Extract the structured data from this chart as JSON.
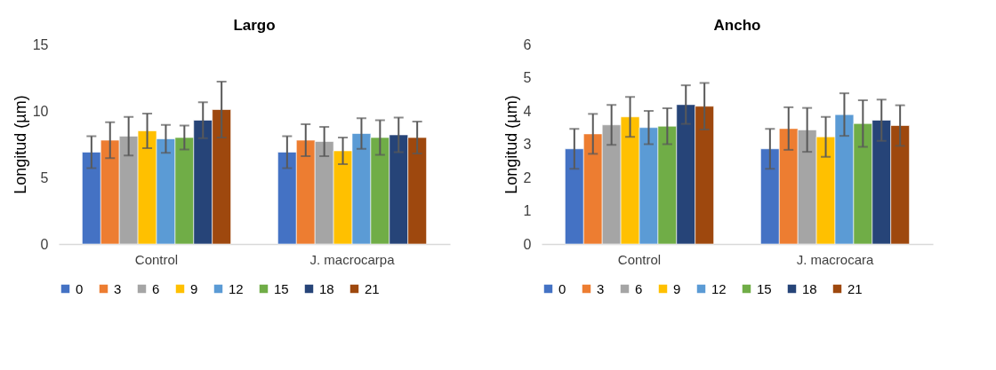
{
  "chart_data": [
    {
      "type": "bar",
      "title": "Largo",
      "ylabel": "Longitud (µm)",
      "categories": [
        "Control",
        "J. macrocarpa"
      ],
      "ylim": [
        0,
        15
      ],
      "yticks": [
        0,
        5,
        10,
        15
      ],
      "grid": false,
      "legend": "bottom",
      "series": [
        {
          "name": "0",
          "color": "#4472c4",
          "values": [
            6.9,
            6.9
          ],
          "errors": [
            1.2,
            1.2
          ]
        },
        {
          "name": "3",
          "color": "#ed7d31",
          "values": [
            7.8,
            7.8
          ],
          "errors": [
            1.35,
            1.2
          ]
        },
        {
          "name": "6",
          "color": "#a5a5a5",
          "values": [
            8.1,
            7.7
          ],
          "errors": [
            1.45,
            1.1
          ]
        },
        {
          "name": "9",
          "color": "#ffc000",
          "values": [
            8.5,
            7.0
          ],
          "errors": [
            1.3,
            1.0
          ]
        },
        {
          "name": "12",
          "color": "#5b9bd5",
          "values": [
            7.9,
            8.3
          ],
          "errors": [
            1.05,
            1.15
          ]
        },
        {
          "name": "15",
          "color": "#70ad47",
          "values": [
            8.0,
            8.0
          ],
          "errors": [
            0.9,
            1.3
          ]
        },
        {
          "name": "18",
          "color": "#264478",
          "values": [
            9.3,
            8.2
          ],
          "errors": [
            1.35,
            1.3
          ]
        },
        {
          "name": "21",
          "color": "#9e480e",
          "values": [
            10.1,
            8.0
          ],
          "errors": [
            2.1,
            1.2
          ]
        }
      ]
    },
    {
      "type": "bar",
      "title": "Ancho",
      "ylabel": "Longitud (µm)",
      "categories": [
        "Control",
        "J. macrocara"
      ],
      "ylim": [
        0,
        6
      ],
      "yticks": [
        0,
        1,
        2,
        3,
        4,
        5,
        6
      ],
      "grid": false,
      "legend": "bottom",
      "series": [
        {
          "name": "0",
          "color": "#4472c4",
          "values": [
            2.86,
            2.86
          ],
          "errors": [
            0.6,
            0.6
          ]
        },
        {
          "name": "3",
          "color": "#ed7d31",
          "values": [
            3.31,
            3.47
          ],
          "errors": [
            0.6,
            0.64
          ]
        },
        {
          "name": "6",
          "color": "#a5a5a5",
          "values": [
            3.58,
            3.43
          ],
          "errors": [
            0.6,
            0.66
          ]
        },
        {
          "name": "9",
          "color": "#ffc000",
          "values": [
            3.82,
            3.22
          ],
          "errors": [
            0.6,
            0.6
          ]
        },
        {
          "name": "12",
          "color": "#5b9bd5",
          "values": [
            3.5,
            3.89
          ],
          "errors": [
            0.5,
            0.64
          ]
        },
        {
          "name": "15",
          "color": "#70ad47",
          "values": [
            3.54,
            3.62
          ],
          "errors": [
            0.54,
            0.7
          ]
        },
        {
          "name": "18",
          "color": "#264478",
          "values": [
            4.19,
            3.72
          ],
          "errors": [
            0.58,
            0.62
          ]
        },
        {
          "name": "21",
          "color": "#9e480e",
          "values": [
            4.14,
            3.56
          ],
          "errors": [
            0.7,
            0.61
          ]
        }
      ]
    }
  ]
}
